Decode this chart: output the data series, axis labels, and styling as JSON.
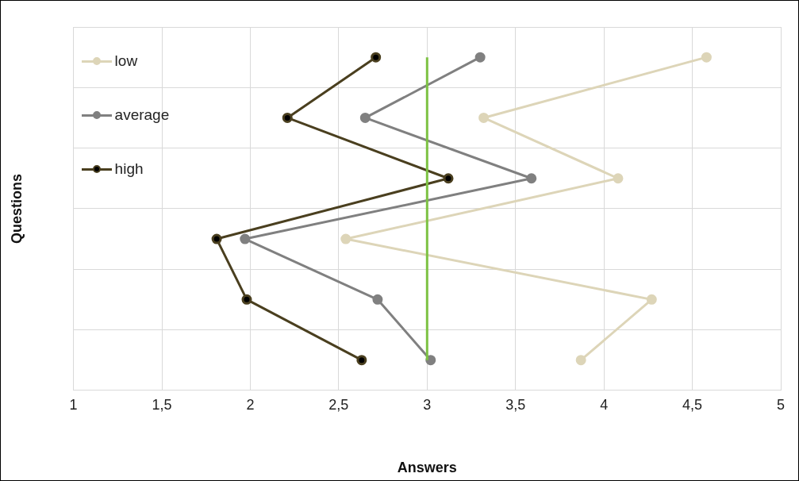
{
  "chart_data": {
    "type": "line",
    "orientation": "horizontal",
    "xlabel": "Answers",
    "ylabel": "Questions",
    "categories": [
      null,
      null,
      null,
      null,
      null,
      null
    ],
    "series": [
      {
        "name": "low",
        "color": "#ddd5b8",
        "values": [
          4.58,
          3.32,
          4.08,
          2.54,
          4.27,
          3.87
        ]
      },
      {
        "name": "average",
        "color": "#808080",
        "values": [
          3.3,
          2.65,
          3.59,
          1.97,
          2.72,
          3.02
        ]
      },
      {
        "name": "high",
        "color": "#4a3f1f",
        "values": [
          2.71,
          2.21,
          3.12,
          1.81,
          1.98,
          2.63
        ]
      }
    ],
    "xlim": [
      1,
      5
    ],
    "xticks": [
      1,
      {
        "value": 1.5,
        "label": "1,5"
      },
      2,
      {
        "value": 2.5,
        "label": "2,5"
      },
      3,
      {
        "value": 3.5,
        "label": "3,5"
      },
      4,
      {
        "value": 4.5,
        "label": "4,5"
      },
      5
    ],
    "ref_lines": [
      {
        "axis": "x",
        "value": 3,
        "color": "#7dc243"
      }
    ],
    "grid": true,
    "legend": "top left",
    "marker": "circle",
    "line_style": "solid"
  }
}
